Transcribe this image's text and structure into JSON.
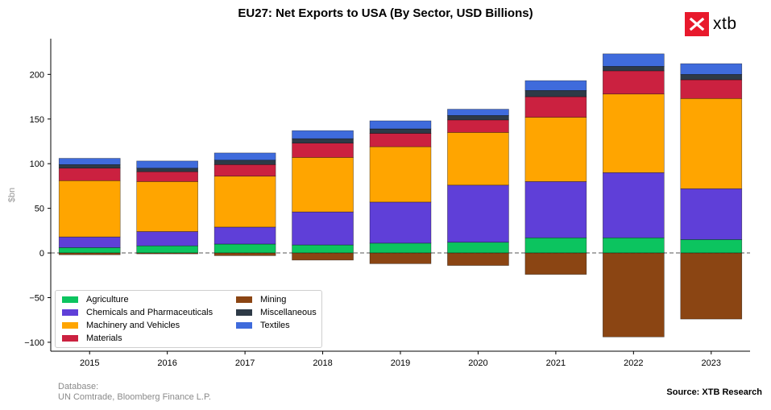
{
  "title": "EU27: Net Exports to USA (By Sector, USD Billions)",
  "brand": {
    "name": "xtb",
    "color": "#e8192c"
  },
  "footer": {
    "database_label": "Database:",
    "database_value": "UN Comtrade, Bloomberg Finance L.P.",
    "source": "Source: XTB Research"
  },
  "chart_data": {
    "type": "bar",
    "stacked": true,
    "title": "EU27: Net Exports to USA (By Sector, USD Billions)",
    "xlabel": "",
    "ylabel": "$bn",
    "ylim": [
      -110,
      240
    ],
    "yticks": [
      -100,
      -50,
      0,
      50,
      100,
      150,
      200
    ],
    "ytick_labels": [
      "−100",
      "−50",
      "0",
      "50",
      "100",
      "150",
      "200"
    ],
    "zero_line": "dashed",
    "legend_position": "lower-left",
    "categories": [
      "2015",
      "2016",
      "2017",
      "2018",
      "2019",
      "2020",
      "2021",
      "2022",
      "2023"
    ],
    "series": [
      {
        "name": "Agriculture",
        "color": "#0cc45f",
        "values": [
          6,
          8,
          10,
          9,
          11,
          12,
          17,
          17,
          15
        ]
      },
      {
        "name": "Chemicals and Pharmaceuticals",
        "color": "#5f3fd8",
        "values": [
          12,
          16,
          19,
          37,
          46,
          64,
          63,
          73,
          57
        ]
      },
      {
        "name": "Machinery and Vehicles",
        "color": "#ffa500",
        "values": [
          63,
          56,
          57,
          61,
          62,
          59,
          72,
          88,
          101
        ]
      },
      {
        "name": "Materials",
        "color": "#cb2140",
        "values": [
          14,
          11,
          13,
          16,
          15,
          14,
          23,
          26,
          21
        ]
      },
      {
        "name": "Mining",
        "color": "#8b4513",
        "values": [
          -2,
          -1,
          -3,
          -8,
          -12,
          -14,
          -24,
          -94,
          -74
        ]
      },
      {
        "name": "Miscellaneous",
        "color": "#2e3a47",
        "values": [
          4,
          4,
          5,
          5,
          5,
          5,
          7,
          5,
          6
        ]
      },
      {
        "name": "Textiles",
        "color": "#3f6bdc",
        "values": [
          7,
          8,
          8,
          9,
          9,
          7,
          11,
          14,
          12
        ]
      }
    ]
  }
}
